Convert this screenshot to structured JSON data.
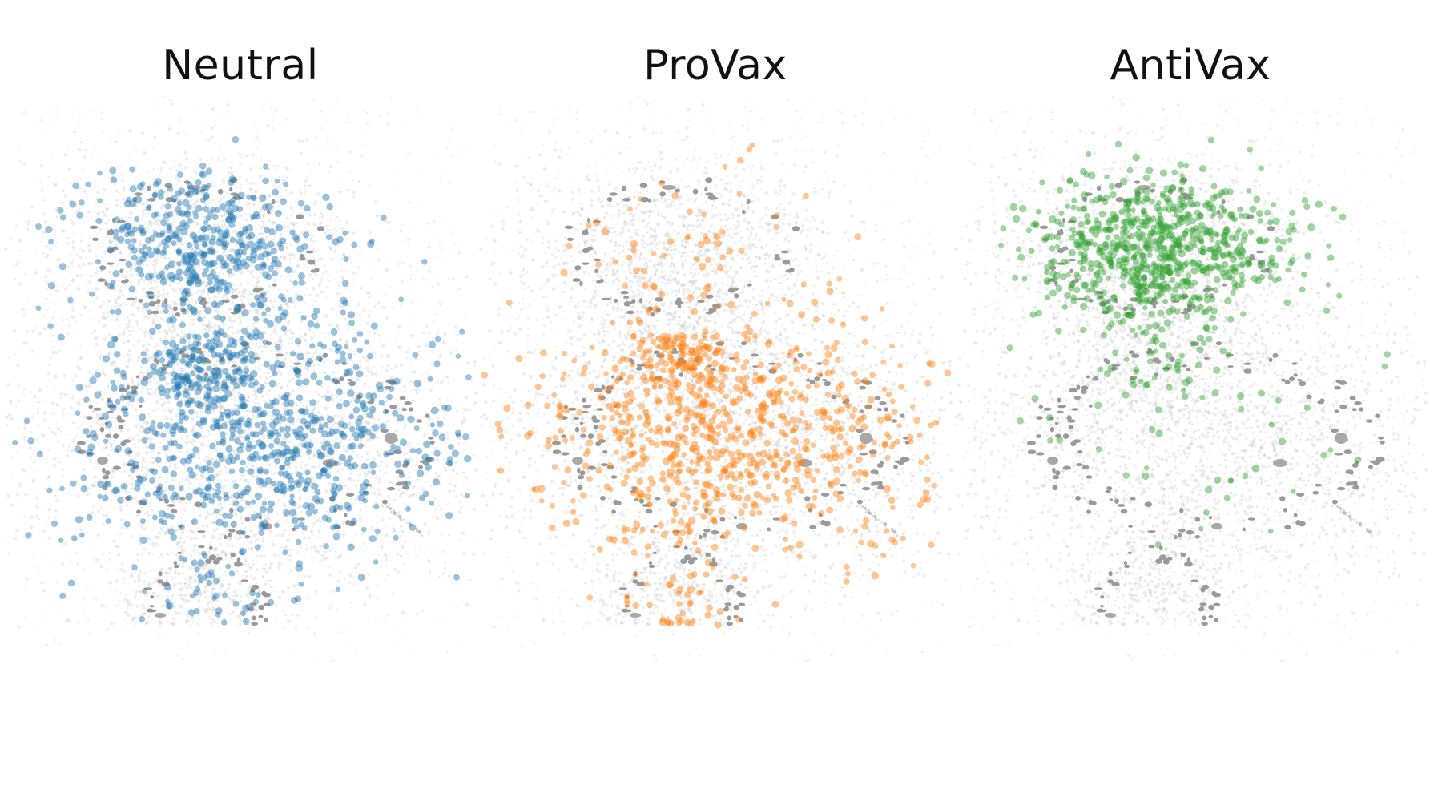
{
  "chart_data": [
    {
      "type": "scatter",
      "title": "Neutral",
      "highlight_color": "#1f77b4",
      "background_color": "#aaaaaa",
      "highlight_regions": [
        {
          "region": "upper-cluster",
          "density": "medium"
        },
        {
          "region": "central-cluster",
          "density": "high"
        },
        {
          "region": "lower-cluster",
          "density": "low"
        }
      ],
      "axes": "hidden",
      "grid": false,
      "legend": "none"
    },
    {
      "type": "scatter",
      "title": "ProVax",
      "highlight_color": "#ff7f0e",
      "background_color": "#aaaaaa",
      "highlight_regions": [
        {
          "region": "upper-cluster",
          "density": "low"
        },
        {
          "region": "central-cluster",
          "density": "high"
        },
        {
          "region": "lower-cluster",
          "density": "low"
        }
      ],
      "axes": "hidden",
      "grid": false,
      "legend": "none"
    },
    {
      "type": "scatter",
      "title": "AntiVax",
      "highlight_color": "#2ca02c",
      "background_color": "#aaaaaa",
      "highlight_regions": [
        {
          "region": "upper-cluster",
          "density": "high"
        },
        {
          "region": "central-cluster",
          "density": "low"
        },
        {
          "region": "lower-cluster",
          "density": "none"
        }
      ],
      "axes": "hidden",
      "grid": false,
      "legend": "none"
    }
  ]
}
